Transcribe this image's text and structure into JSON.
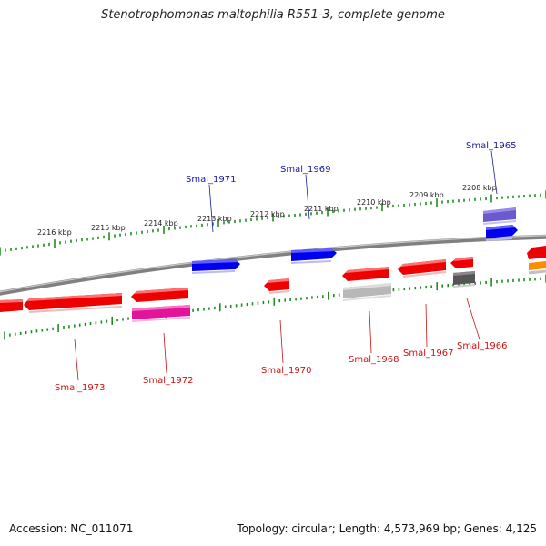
{
  "title": "Stenotrophomonas maltophilia R551-3, complete genome",
  "footer": {
    "accession": "Accession: NC_011071",
    "summary": "Topology: circular; Length: 4,573,969 bp; Genes: 4,125"
  },
  "scale": {
    "ticks": [
      {
        "label": "2216 kbp"
      },
      {
        "label": "2215 kbp"
      },
      {
        "label": "2214 kbp"
      },
      {
        "label": "2213 kbp"
      },
      {
        "label": "2212 kbp"
      },
      {
        "label": "2211 kbp"
      },
      {
        "label": "2210 kbp"
      },
      {
        "label": "2209 kbp"
      },
      {
        "label": "2208 kbp"
      }
    ]
  },
  "genes": {
    "top_labels": [
      {
        "name": "Smal_1971"
      },
      {
        "name": "Smal_1969"
      },
      {
        "name": "Smal_1965"
      }
    ],
    "bottom_labels": [
      {
        "name": "Smal_1973"
      },
      {
        "name": "Smal_1972"
      },
      {
        "name": "Smal_1970"
      },
      {
        "name": "Smal_1968"
      },
      {
        "name": "Smal_1967"
      },
      {
        "name": "Smal_1966"
      }
    ]
  },
  "colors": {
    "forward_gene": "#0000ee",
    "reverse_gene": "#ee0000",
    "pseudo_gene": "#e0159a",
    "rna_gene": "#b8b8b8",
    "other_gene": "#555555",
    "purple_gene": "#6a5acd",
    "orange_gene": "#ff8c00",
    "forward_label": "#1a1aa0",
    "reverse_label": "#cc1111",
    "tick": "#228b22",
    "backbone": "#7a7a7a"
  }
}
